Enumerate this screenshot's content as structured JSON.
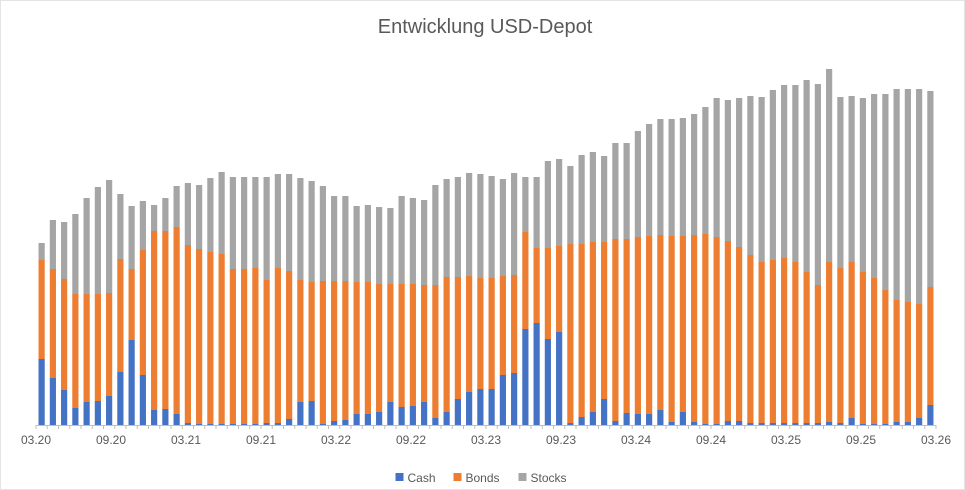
{
  "chart_data": {
    "type": "bar",
    "stacked": true,
    "title": "Entwicklung USD-Depot",
    "xlabel": "",
    "ylabel": "",
    "x_tick_labels": [
      "03.20",
      "09.20",
      "03.21",
      "09.21",
      "03.22",
      "09.22",
      "03.23",
      "09.23",
      "03.24",
      "09.24",
      "03.25",
      "09.25",
      "03.26"
    ],
    "grid": false,
    "y_axis_visible": false,
    "legend_position": "bottom",
    "colors": {
      "Cash": "#4472C4",
      "Bonds": "#ED7D31",
      "Stocks": "#A5A5A5"
    },
    "series": [
      {
        "name": "Cash",
        "values": [
          66,
          47,
          35,
          17,
          23,
          24,
          29,
          53,
          85,
          50,
          15,
          16,
          11,
          2,
          1,
          1,
          1,
          1,
          1,
          1,
          2,
          2,
          6,
          23,
          24,
          1,
          4,
          5,
          11,
          11,
          13,
          23,
          18,
          19,
          23,
          7,
          13,
          26,
          33,
          36,
          36,
          50,
          52,
          96,
          102,
          86,
          93,
          2,
          8,
          13,
          26,
          4,
          12,
          11,
          11,
          15,
          3,
          13,
          3,
          1,
          1,
          4,
          4,
          2,
          2,
          2,
          2,
          2,
          2,
          2,
          3,
          2,
          7,
          1,
          1,
          1,
          3,
          3,
          7,
          20
        ]
      },
      {
        "name": "Bonds",
        "values": [
          99,
          109,
          111,
          114,
          108,
          107,
          103,
          113,
          71,
          125,
          179,
          178,
          187,
          178,
          175,
          172,
          170,
          155,
          155,
          156,
          143,
          155,
          148,
          122,
          119,
          143,
          140,
          139,
          132,
          132,
          128,
          118,
          123,
          122,
          117,
          133,
          135,
          122,
          116,
          111,
          111,
          99,
          98,
          97,
          75,
          91,
          86,
          179,
          173,
          170,
          157,
          182,
          174,
          177,
          178,
          175,
          186,
          176,
          187,
          190,
          187,
          180,
          174,
          168,
          161,
          163,
          165,
          161,
          151,
          138,
          160,
          155,
          156,
          152,
          146,
          134,
          122,
          120,
          114,
          118
        ]
      },
      {
        "name": "Stocks",
        "values": [
          17,
          49,
          57,
          80,
          96,
          107,
          113,
          65,
          63,
          49,
          26,
          33,
          41,
          62,
          64,
          74,
          82,
          92,
          92,
          91,
          103,
          94,
          97,
          102,
          101,
          95,
          85,
          85,
          76,
          77,
          77,
          76,
          88,
          86,
          85,
          100,
          98,
          100,
          103,
          104,
          102,
          97,
          102,
          55,
          71,
          87,
          87,
          78,
          89,
          90,
          86,
          96,
          96,
          106,
          112,
          116,
          117,
          118,
          121,
          127,
          139,
          141,
          149,
          159,
          165,
          170,
          173,
          177,
          192,
          201,
          193,
          171,
          166,
          174,
          184,
          196,
          211,
          213,
          215,
          196
        ]
      }
    ]
  }
}
